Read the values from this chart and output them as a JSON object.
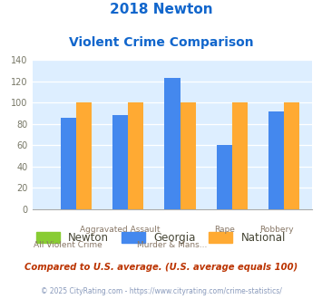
{
  "title_line1": "2018 Newton",
  "title_line2": "Violent Crime Comparison",
  "categories": [
    "All Violent Crime",
    "Aggravated Assault",
    "Murder & Mans...",
    "Rape",
    "Robbery"
  ],
  "newton": [
    0,
    0,
    0,
    0,
    0
  ],
  "georgia": [
    86,
    88,
    123,
    60,
    92
  ],
  "national": [
    100,
    100,
    100,
    100,
    100
  ],
  "newton_color": "#88cc33",
  "georgia_color": "#4488ee",
  "national_color": "#ffaa33",
  "title_color": "#1166cc",
  "plot_bg": "#ddeeff",
  "ylim": [
    0,
    140
  ],
  "yticks": [
    0,
    20,
    40,
    60,
    80,
    100,
    120,
    140
  ],
  "footer1": "Compared to U.S. average. (U.S. average equals 100)",
  "footer2": "© 2025 CityRating.com - https://www.cityrating.com/crime-statistics/",
  "footer1_color": "#bb3300",
  "footer2_color": "#8899bb",
  "top_row_labels": {
    "1": "Aggravated Assault",
    "3": "Rape",
    "4": "Robbery"
  },
  "bot_row_labels": {
    "0": "All Violent Crime",
    "2": "Murder & Mans..."
  }
}
